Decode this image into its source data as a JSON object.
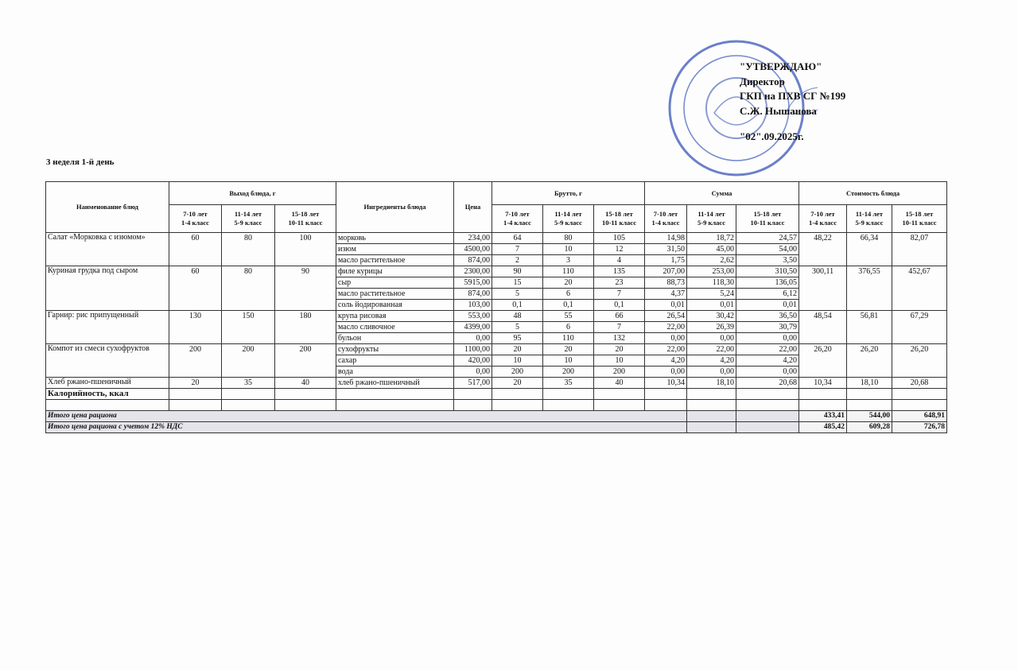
{
  "approval": {
    "lines": [
      "\"УТВЕРЖДАЮ\"",
      "Директор",
      "ГКП на ПХВ СГ №199",
      "С.Ж. Нышанова"
    ],
    "date": "\"02\".09.2025г."
  },
  "heading": "3 неделя 1-й день",
  "table": {
    "headers": {
      "dish": "Наименование блюд",
      "yield": "Выход блюда, г",
      "ingredients": "Ингредиенты блюда",
      "price": "Цена",
      "brutto": "Брутто, г",
      "sum": "Сумма",
      "cost": "Стоимость блюда"
    },
    "age_groups": [
      {
        "age": "7-10 лет",
        "grade": "1-4 класс"
      },
      {
        "age": "11-14 лет",
        "grade": "5-9 класс"
      },
      {
        "age": "15-18 лет",
        "grade": "10-11 класс"
      }
    ],
    "dishes": [
      {
        "name": "Салат «Морковка с изюмом»",
        "yield": [
          "60",
          "80",
          "100"
        ],
        "cost": [
          "48,22",
          "66,34",
          "82,07"
        ],
        "ingredients": [
          {
            "name": "морковь",
            "price": "234,00",
            "brutto": [
              "64",
              "80",
              "105"
            ],
            "sum": [
              "14,98",
              "18,72",
              "24,57"
            ]
          },
          {
            "name": "изюм",
            "price": "4500,00",
            "brutto": [
              "7",
              "10",
              "12"
            ],
            "sum": [
              "31,50",
              "45,00",
              "54,00"
            ]
          },
          {
            "name": "масло растительное",
            "price": "874,00",
            "brutto": [
              "2",
              "3",
              "4"
            ],
            "sum": [
              "1,75",
              "2,62",
              "3,50"
            ]
          }
        ]
      },
      {
        "name": "Куриная грудка под сыром",
        "yield": [
          "60",
          "80",
          "90"
        ],
        "cost": [
          "300,11",
          "376,55",
          "452,67"
        ],
        "ingredients": [
          {
            "name": "филе курицы",
            "price": "2300,00",
            "brutto": [
              "90",
              "110",
              "135"
            ],
            "sum": [
              "207,00",
              "253,00",
              "310,50"
            ]
          },
          {
            "name": "сыр",
            "price": "5915,00",
            "brutto": [
              "15",
              "20",
              "23"
            ],
            "sum": [
              "88,73",
              "118,30",
              "136,05"
            ]
          },
          {
            "name": "масло растительное",
            "price": "874,00",
            "brutto": [
              "5",
              "6",
              "7"
            ],
            "sum": [
              "4,37",
              "5,24",
              "6,12"
            ]
          },
          {
            "name": "соль йодированная",
            "price": "103,00",
            "brutto": [
              "0,1",
              "0,1",
              "0,1"
            ],
            "sum": [
              "0,01",
              "0,01",
              "0,01"
            ]
          }
        ]
      },
      {
        "name": "Гарнир: рис припущенный",
        "yield": [
          "130",
          "150",
          "180"
        ],
        "cost": [
          "48,54",
          "56,81",
          "67,29"
        ],
        "ingredients": [
          {
            "name": "крупа рисовая",
            "price": "553,00",
            "brutto": [
              "48",
              "55",
              "66"
            ],
            "sum": [
              "26,54",
              "30,42",
              "36,50"
            ]
          },
          {
            "name": "масло сливочное",
            "price": "4399,00",
            "brutto": [
              "5",
              "6",
              "7"
            ],
            "sum": [
              "22,00",
              "26,39",
              "30,79"
            ]
          },
          {
            "name": "бульон",
            "price": "0,00",
            "brutto": [
              "95",
              "110",
              "132"
            ],
            "sum": [
              "0,00",
              "0,00",
              "0,00"
            ]
          }
        ]
      },
      {
        "name": "Компот из смеси сухофруктов",
        "yield": [
          "200",
          "200",
          "200"
        ],
        "cost": [
          "26,20",
          "26,20",
          "26,20"
        ],
        "ingredients": [
          {
            "name": "сухофрукты",
            "price": "1100,00",
            "brutto": [
              "20",
              "20",
              "20"
            ],
            "sum": [
              "22,00",
              "22,00",
              "22,00"
            ]
          },
          {
            "name": "сахар",
            "price": "420,00",
            "brutto": [
              "10",
              "10",
              "10"
            ],
            "sum": [
              "4,20",
              "4,20",
              "4,20"
            ]
          },
          {
            "name": "вода",
            "price": "0,00",
            "brutto": [
              "200",
              "200",
              "200"
            ],
            "sum": [
              "0,00",
              "0,00",
              "0,00"
            ]
          }
        ]
      },
      {
        "name": "Хлеб ржано-пшеничный",
        "yield": [
          "20",
          "35",
          "40"
        ],
        "cost": [
          "10,34",
          "18,10",
          "20,68"
        ],
        "ingredients": [
          {
            "name": "хлеб ржано-пшеничный",
            "price": "517,00",
            "brutto": [
              "20",
              "35",
              "40"
            ],
            "sum": [
              "10,34",
              "18,10",
              "20,68"
            ]
          }
        ]
      }
    ],
    "calories_label": "Калорийность, ккал",
    "totals": [
      {
        "label": "Итого цена рациона",
        "values": [
          "433,41",
          "544,00",
          "648,91"
        ]
      },
      {
        "label": "Итого цена рациона с учетом 12% НДС",
        "values": [
          "485,42",
          "609,28",
          "726,78"
        ]
      }
    ]
  }
}
